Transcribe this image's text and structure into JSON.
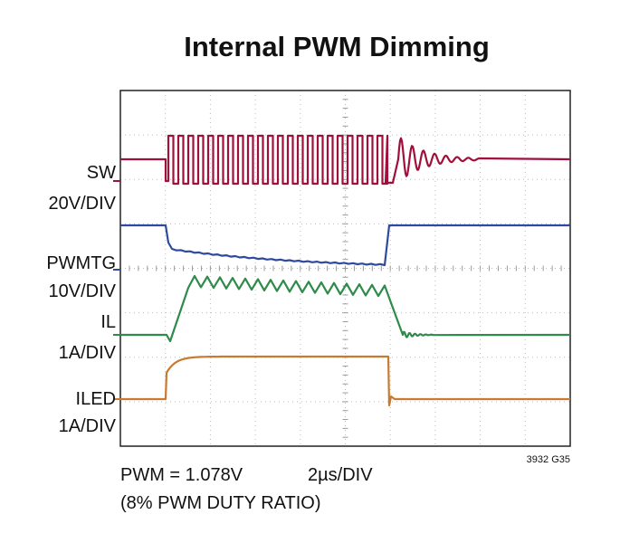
{
  "title": "Internal PWM Dimming",
  "channels": [
    {
      "name": "SW",
      "scale": "20V/DIV"
    },
    {
      "name": "PWMTG",
      "scale": "10V/DIV"
    },
    {
      "name": "IL",
      "scale": "1A/DIV"
    },
    {
      "name": "ILED",
      "scale": "1A/DIV"
    }
  ],
  "footer": {
    "figure_id": "3932 G35",
    "condition": "PWM = 1.078V",
    "timebase": "2µs/DIV",
    "note": "(8% PWM DUTY RATIO)"
  }
}
